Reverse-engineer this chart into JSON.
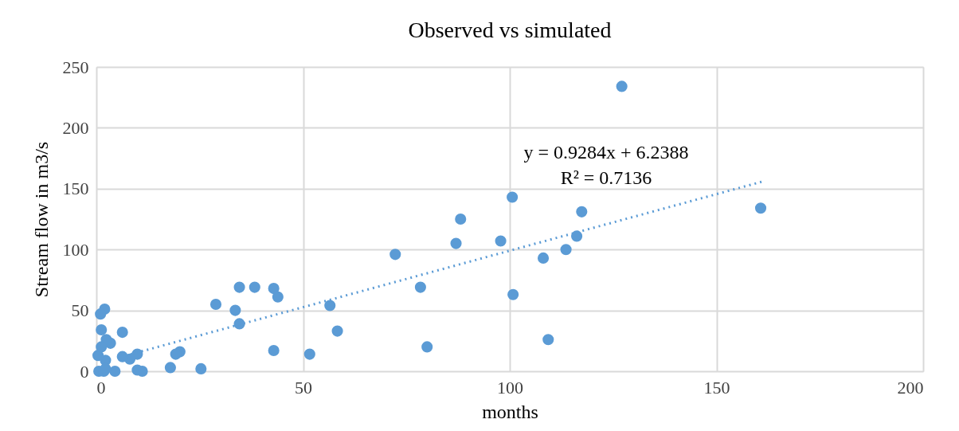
{
  "chart_data": {
    "type": "scatter",
    "title": "Observed vs simulated",
    "xlabel": "months",
    "ylabel": "Stream flow in m3/s",
    "xlim": [
      0,
      200
    ],
    "xticks": [
      0,
      50,
      100,
      150,
      200
    ],
    "ylim": [
      0,
      250
    ],
    "yticks": [
      0,
      50,
      100,
      150,
      200,
      250
    ],
    "grid": true,
    "marker": "circle",
    "annotations": [
      "y = 0.9284x + 6.2388",
      "R² = 0.7136"
    ],
    "series": [
      {
        "color": "#5b9bd5",
        "x": [
          127.1,
          160.7,
          117.4,
          116.2,
          113.6,
          108.1,
          109.3,
          100.6,
          88.1,
          87.0,
          97.8,
          100.8,
          72.3,
          78.4,
          80.0,
          56.5,
          58.3,
          51.6,
          42.9,
          43.9,
          42.9,
          38.3,
          34.6,
          33.6,
          34.6,
          28.9,
          25.3,
          20.2,
          19.2,
          17.9,
          11.1,
          9.9,
          9.9,
          8.1,
          6.3,
          6.3,
          4.5,
          3.4,
          2.0,
          1.0,
          1.2,
          2.4,
          2.2,
          1.6,
          0.8,
          0.6,
          1.8,
          2.2,
          0.4,
          1.2
        ],
        "values": [
          234,
          134,
          131,
          111,
          100,
          93,
          26,
          143,
          125,
          105,
          107,
          63,
          96,
          69,
          20,
          54,
          33,
          14,
          68,
          61,
          17,
          69,
          69,
          50,
          39,
          55,
          2,
          16,
          14,
          3,
          0,
          1,
          14,
          10,
          12,
          32,
          0,
          23,
          51,
          47,
          34,
          26,
          9,
          null,
          null,
          0,
          0,
          2,
          13,
          20
        ]
      },
      {
        "type": "line",
        "color": "#5b9bd5",
        "line_style": "dotted",
        "marker": "none",
        "x": [
          7,
          161
        ],
        "values": [
          12.7,
          155.7
        ]
      }
    ]
  }
}
